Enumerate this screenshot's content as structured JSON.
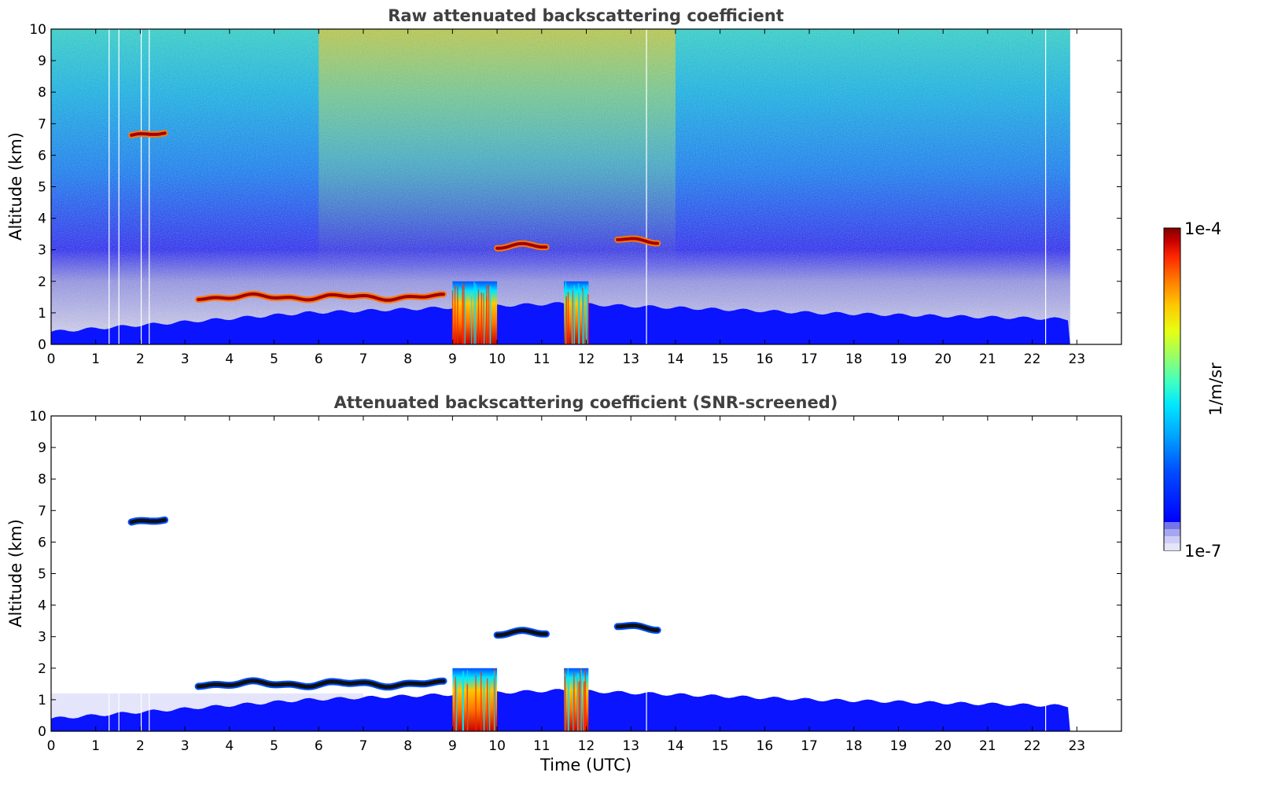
{
  "chart_data": [
    {
      "type": "heatmap",
      "title": "Raw attenuated backscattering coefficient",
      "xlabel": "",
      "ylabel": "Altitude (km)",
      "xlim": [
        0,
        24
      ],
      "ylim": [
        0,
        10
      ],
      "xticks": [
        "0",
        "1",
        "2",
        "3",
        "4",
        "5",
        "6",
        "7",
        "8",
        "9",
        "10",
        "11",
        "12",
        "13",
        "14",
        "15",
        "16",
        "17",
        "18",
        "19",
        "20",
        "21",
        "22",
        "23"
      ],
      "yticks": [
        "0",
        "1",
        "2",
        "3",
        "4",
        "5",
        "6",
        "7",
        "8",
        "9",
        "10"
      ],
      "data_end_hour": 22.85,
      "scale": "log",
      "features": [
        {
          "label": "boundary layer",
          "from_hour": 0,
          "to_hour": 22.85,
          "top_km": [
            0.4,
            1.0,
            1.3,
            1.0,
            0.8
          ]
        },
        {
          "label": "cloud 1",
          "from_hour": 1.8,
          "to_hour": 2.55,
          "altitude_km": 6.65
        },
        {
          "label": "cloud 2",
          "from_hour": 3.3,
          "to_hour": 8.8,
          "altitude_km": 1.5
        },
        {
          "label": "cloud 3",
          "from_hour": 10.0,
          "to_hour": 11.1,
          "altitude_km": 3.1
        },
        {
          "label": "cloud 4",
          "from_hour": 12.7,
          "to_hour": 13.6,
          "altitude_km": 3.3
        },
        {
          "label": "precipitation",
          "from_hour": 9.0,
          "to_hour": 10.0,
          "altitude_km": [
            0,
            2.0
          ]
        },
        {
          "label": "precipitation",
          "from_hour": 11.5,
          "to_hour": 12.05,
          "altitude_km": [
            0,
            2.0
          ]
        }
      ]
    },
    {
      "type": "heatmap",
      "title": "Attenuated backscattering coefficient (SNR-screened)",
      "xlabel": "Time (UTC)",
      "ylabel": "Altitude (km)",
      "xlim": [
        0,
        24
      ],
      "ylim": [
        0,
        10
      ],
      "xticks": [
        "0",
        "1",
        "2",
        "3",
        "4",
        "5",
        "6",
        "7",
        "8",
        "9",
        "10",
        "11",
        "12",
        "13",
        "14",
        "15",
        "16",
        "17",
        "18",
        "19",
        "20",
        "21",
        "22",
        "23"
      ],
      "yticks": [
        "0",
        "1",
        "2",
        "3",
        "4",
        "5",
        "6",
        "7",
        "8",
        "9",
        "10"
      ],
      "data_end_hour": 22.85,
      "scale": "log"
    }
  ],
  "colorbar": {
    "min_label": "1e-7",
    "max_label": "1e-4",
    "unit_label": "1/m/sr",
    "colors": [
      "#e4e4fa",
      "#cdcdf7",
      "#a6a6f0",
      "#7575ea",
      "#0000ff",
      "#0050ff",
      "#00a0ff",
      "#00e6ff",
      "#3cffc3",
      "#96ff69",
      "#e6ff14",
      "#ffc800",
      "#ff7800",
      "#ff2800",
      "#c80000",
      "#800000"
    ]
  }
}
